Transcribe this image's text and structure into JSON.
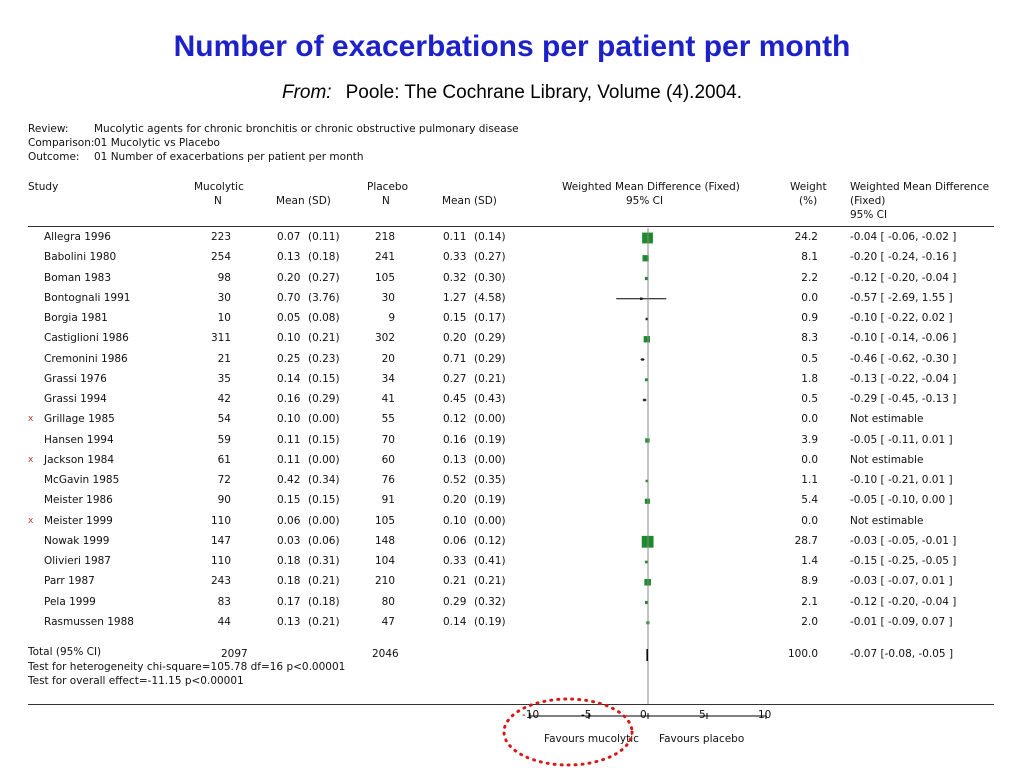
{
  "page": {
    "title": "Number of exacerbations per patient per month",
    "source_prefix": "From:",
    "source": "Poole: The Cochrane Library, Volume (4).2004."
  },
  "meta": {
    "review_label": "Review:",
    "review": "Mucolytic agents for chronic bronchitis or chronic obstructive pulmonary disease",
    "comparison_label": "Comparison:",
    "comparison": "01 Mucolytic vs Placebo",
    "outcome_label": "Outcome:",
    "outcome": "01 Number of exacerbations per patient per month"
  },
  "headers": {
    "study": "Study",
    "mucolytic": "Mucolytic",
    "mucolytic_n": "N",
    "mean_sd_1": "Mean (SD)",
    "placebo": "Placebo",
    "placebo_n": "N",
    "mean_sd_2": "Mean (SD)",
    "wmd": "Weighted Mean Difference (Fixed)",
    "wmd_ci": "95% CI",
    "weight": "Weight",
    "weight_unit": "(%)",
    "wmd2_line1": "Weighted Mean Difference",
    "wmd2_line2": "(Fixed)",
    "wmd2_line3": "95% CI"
  },
  "total": {
    "label": "Total (95% CI)",
    "n1": "2097",
    "n2": "2046",
    "weight": "100.0",
    "ci_text": "-0.07 [-0.08, -0.05 ]",
    "heterogeneity": "Test for heterogeneity chi-square=105.78 df=16 p<0.00001",
    "overall": "Test for overall effect=-11.15 p<0.00001"
  },
  "axis": {
    "ticks": [
      "-10",
      "-5",
      "0",
      "5",
      "10"
    ],
    "left_label": "Favours mucolytic",
    "right_label": "Favours placebo"
  },
  "colors": {
    "title": "#1c22c8",
    "marker": "#1e8a2e",
    "highlight_circle": "#d41a1a",
    "flag": "#c0392b"
  },
  "chart_data": {
    "type": "forest",
    "x_axis_ticks": [
      -10,
      -5,
      0,
      5,
      10
    ],
    "xlim": [
      -10,
      10
    ],
    "studies": [
      {
        "study": "Allegra 1996",
        "flag": "",
        "n1": "223",
        "m1": "0.07",
        "sd1": "(0.11)",
        "n2": "218",
        "m2": "0.11",
        "sd2": "(0.14)",
        "weight": "24.2",
        "ci_text": "-0.04 [ -0.06, -0.02 ]",
        "est": -0.04,
        "lo": -0.06,
        "hi": -0.02
      },
      {
        "study": "Babolini 1980",
        "flag": "",
        "n1": "254",
        "m1": "0.13",
        "sd1": "(0.18)",
        "n2": "241",
        "m2": "0.33",
        "sd2": "(0.27)",
        "weight": "8.1",
        "ci_text": "-0.20 [ -0.24, -0.16 ]",
        "est": -0.2,
        "lo": -0.24,
        "hi": -0.16
      },
      {
        "study": "Boman 1983",
        "flag": "",
        "n1": "98",
        "m1": "0.20",
        "sd1": "(0.27)",
        "n2": "105",
        "m2": "0.32",
        "sd2": "(0.30)",
        "weight": "2.2",
        "ci_text": "-0.12 [ -0.20, -0.04 ]",
        "est": -0.12,
        "lo": -0.2,
        "hi": -0.04
      },
      {
        "study": "Bontognali 1991",
        "flag": "",
        "n1": "30",
        "m1": "0.70",
        "sd1": "(3.76)",
        "n2": "30",
        "m2": "1.27",
        "sd2": "(4.58)",
        "weight": "0.0",
        "ci_text": "-0.57 [ -2.69, 1.55 ]",
        "est": -0.57,
        "lo": -2.69,
        "hi": 1.55
      },
      {
        "study": "Borgia 1981",
        "flag": "",
        "n1": "10",
        "m1": "0.05",
        "sd1": "(0.08)",
        "n2": "9",
        "m2": "0.15",
        "sd2": "(0.17)",
        "weight": "0.9",
        "ci_text": "-0.10 [ -0.22, 0.02 ]",
        "est": -0.1,
        "lo": -0.22,
        "hi": 0.02
      },
      {
        "study": "Castiglioni 1986",
        "flag": "",
        "n1": "311",
        "m1": "0.10",
        "sd1": "(0.21)",
        "n2": "302",
        "m2": "0.20",
        "sd2": "(0.29)",
        "weight": "8.3",
        "ci_text": "-0.10 [ -0.14, -0.06 ]",
        "est": -0.1,
        "lo": -0.14,
        "hi": -0.06
      },
      {
        "study": "Cremonini 1986",
        "flag": "",
        "n1": "21",
        "m1": "0.25",
        "sd1": "(0.23)",
        "n2": "20",
        "m2": "0.71",
        "sd2": "(0.29)",
        "weight": "0.5",
        "ci_text": "-0.46 [ -0.62, -0.30 ]",
        "est": -0.46,
        "lo": -0.62,
        "hi": -0.3
      },
      {
        "study": "Grassi 1976",
        "flag": "",
        "n1": "35",
        "m1": "0.14",
        "sd1": "(0.15)",
        "n2": "34",
        "m2": "0.27",
        "sd2": "(0.21)",
        "weight": "1.8",
        "ci_text": "-0.13 [ -0.22, -0.04 ]",
        "est": -0.13,
        "lo": -0.22,
        "hi": -0.04
      },
      {
        "study": "Grassi 1994",
        "flag": "",
        "n1": "42",
        "m1": "0.16",
        "sd1": "(0.29)",
        "n2": "41",
        "m2": "0.45",
        "sd2": "(0.43)",
        "weight": "0.5",
        "ci_text": "-0.29 [ -0.45, -0.13 ]",
        "est": -0.29,
        "lo": -0.45,
        "hi": -0.13
      },
      {
        "study": "Grillage 1985",
        "flag": "x",
        "n1": "54",
        "m1": "0.10",
        "sd1": "(0.00)",
        "n2": "55",
        "m2": "0.12",
        "sd2": "(0.00)",
        "weight": "0.0",
        "ci_text": "Not estimable",
        "est": null,
        "lo": null,
        "hi": null
      },
      {
        "study": "Hansen 1994",
        "flag": "",
        "n1": "59",
        "m1": "0.11",
        "sd1": "(0.15)",
        "n2": "70",
        "m2": "0.16",
        "sd2": "(0.19)",
        "weight": "3.9",
        "ci_text": "-0.05 [ -0.11, 0.01 ]",
        "est": -0.05,
        "lo": -0.11,
        "hi": 0.01
      },
      {
        "study": "Jackson 1984",
        "flag": "x",
        "n1": "61",
        "m1": "0.11",
        "sd1": "(0.00)",
        "n2": "60",
        "m2": "0.13",
        "sd2": "(0.00)",
        "weight": "0.0",
        "ci_text": "Not estimable",
        "est": null,
        "lo": null,
        "hi": null
      },
      {
        "study": "McGavin 1985",
        "flag": "",
        "n1": "72",
        "m1": "0.42",
        "sd1": "(0.34)",
        "n2": "76",
        "m2": "0.52",
        "sd2": "(0.35)",
        "weight": "1.1",
        "ci_text": "-0.10 [ -0.21, 0.01 ]",
        "est": -0.1,
        "lo": -0.21,
        "hi": 0.01
      },
      {
        "study": "Meister 1986",
        "flag": "",
        "n1": "90",
        "m1": "0.15",
        "sd1": "(0.15)",
        "n2": "91",
        "m2": "0.20",
        "sd2": "(0.19)",
        "weight": "5.4",
        "ci_text": "-0.05 [ -0.10, 0.00 ]",
        "est": -0.05,
        "lo": -0.1,
        "hi": 0.0
      },
      {
        "study": "Meister 1999",
        "flag": "x",
        "n1": "110",
        "m1": "0.06",
        "sd1": "(0.00)",
        "n2": "105",
        "m2": "0.10",
        "sd2": "(0.00)",
        "weight": "0.0",
        "ci_text": "Not estimable",
        "est": null,
        "lo": null,
        "hi": null
      },
      {
        "study": "Nowak 1999",
        "flag": "",
        "n1": "147",
        "m1": "0.03",
        "sd1": "(0.06)",
        "n2": "148",
        "m2": "0.06",
        "sd2": "(0.12)",
        "weight": "28.7",
        "ci_text": "-0.03 [ -0.05, -0.01 ]",
        "est": -0.03,
        "lo": -0.05,
        "hi": -0.01
      },
      {
        "study": "Olivieri 1987",
        "flag": "",
        "n1": "110",
        "m1": "0.18",
        "sd1": "(0.31)",
        "n2": "104",
        "m2": "0.33",
        "sd2": "(0.41)",
        "weight": "1.4",
        "ci_text": "-0.15 [ -0.25, -0.05 ]",
        "est": -0.15,
        "lo": -0.25,
        "hi": -0.05
      },
      {
        "study": "Parr 1987",
        "flag": "",
        "n1": "243",
        "m1": "0.18",
        "sd1": "(0.21)",
        "n2": "210",
        "m2": "0.21",
        "sd2": "(0.21)",
        "weight": "8.9",
        "ci_text": "-0.03 [ -0.07, 0.01 ]",
        "est": -0.03,
        "lo": -0.07,
        "hi": 0.01
      },
      {
        "study": "Pela 1999",
        "flag": "",
        "n1": "83",
        "m1": "0.17",
        "sd1": "(0.18)",
        "n2": "80",
        "m2": "0.29",
        "sd2": "(0.32)",
        "weight": "2.1",
        "ci_text": "-0.12 [ -0.20, -0.04 ]",
        "est": -0.12,
        "lo": -0.2,
        "hi": -0.04
      },
      {
        "study": "Rasmussen 1988",
        "flag": "",
        "n1": "44",
        "m1": "0.13",
        "sd1": "(0.21)",
        "n2": "47",
        "m2": "0.14",
        "sd2": "(0.19)",
        "weight": "2.0",
        "ci_text": "-0.01 [ -0.09, 0.07 ]",
        "est": -0.01,
        "lo": -0.09,
        "hi": 0.07
      }
    ],
    "pooled": {
      "est": -0.07,
      "lo": -0.08,
      "hi": -0.05
    }
  }
}
